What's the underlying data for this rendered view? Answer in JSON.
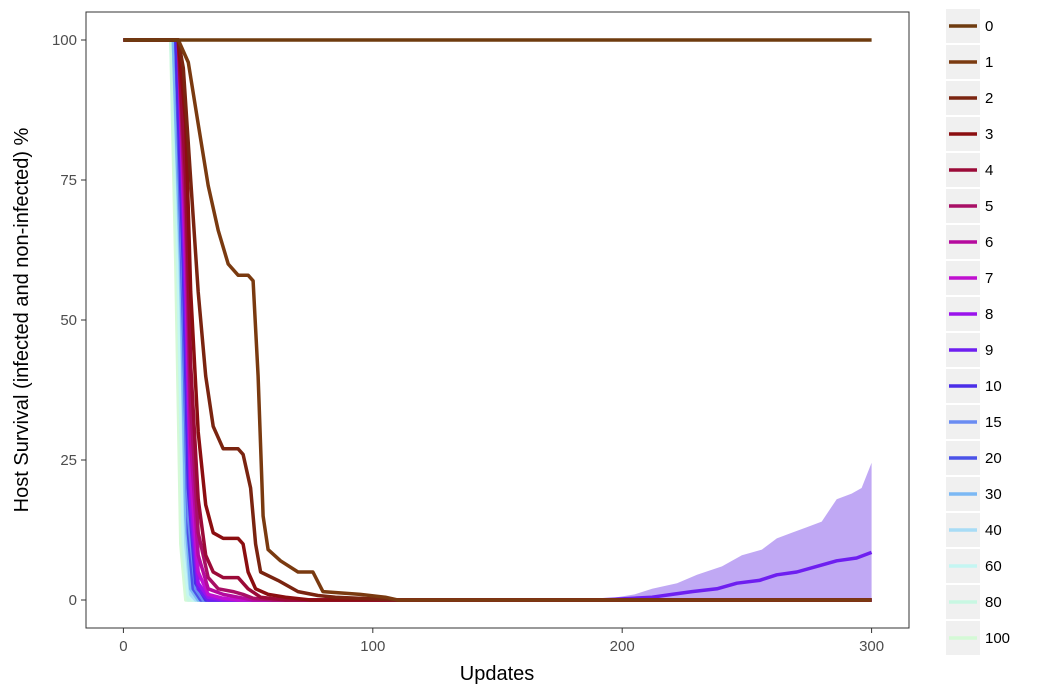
{
  "chart_data": {
    "type": "line",
    "title": "",
    "xlabel": "Updates",
    "ylabel": "Host Survival (infected and non-infected) %",
    "xlim": [
      -15,
      315
    ],
    "ylim": [
      -5,
      105
    ],
    "x_ticks": [
      0,
      100,
      200,
      300
    ],
    "y_ticks": [
      0,
      25,
      50,
      75,
      100
    ],
    "grid": false,
    "legend_position": "right",
    "series": [
      {
        "name": "0",
        "color": "#6e3b0f",
        "points": [
          [
            0,
            100
          ],
          [
            300,
            100
          ]
        ]
      },
      {
        "name": "1",
        "color": "#7a3a10",
        "points": [
          [
            0,
            100
          ],
          [
            22,
            100
          ],
          [
            26,
            96
          ],
          [
            30,
            85
          ],
          [
            34,
            74
          ],
          [
            38,
            66
          ],
          [
            42,
            60
          ],
          [
            46,
            58
          ],
          [
            50,
            58
          ],
          [
            52,
            57
          ],
          [
            54,
            40
          ],
          [
            56,
            15
          ],
          [
            58,
            9
          ],
          [
            63,
            7
          ],
          [
            70,
            5
          ],
          [
            76,
            5
          ],
          [
            80,
            1.5
          ],
          [
            95,
            1
          ],
          [
            105,
            0.5
          ],
          [
            110,
            0
          ],
          [
            300,
            0
          ]
        ]
      },
      {
        "name": "2",
        "color": "#7a2410",
        "points": [
          [
            0,
            100
          ],
          [
            22,
            100
          ],
          [
            24,
            95
          ],
          [
            27,
            75
          ],
          [
            30,
            55
          ],
          [
            33,
            40
          ],
          [
            36,
            31
          ],
          [
            40,
            27
          ],
          [
            46,
            27
          ],
          [
            48,
            26
          ],
          [
            51,
            20
          ],
          [
            53,
            10
          ],
          [
            55,
            5
          ],
          [
            62,
            3.5
          ],
          [
            70,
            1.5
          ],
          [
            78,
            0.8
          ],
          [
            85,
            0.5
          ],
          [
            100,
            0.2
          ],
          [
            110,
            0
          ],
          [
            300,
            0
          ]
        ]
      },
      {
        "name": "3",
        "color": "#8b0e10",
        "points": [
          [
            0,
            100
          ],
          [
            22,
            100
          ],
          [
            25,
            85
          ],
          [
            27,
            55
          ],
          [
            30,
            30
          ],
          [
            33,
            17
          ],
          [
            36,
            12
          ],
          [
            40,
            11
          ],
          [
            46,
            11
          ],
          [
            48,
            10
          ],
          [
            50,
            5
          ],
          [
            53,
            2
          ],
          [
            58,
            1
          ],
          [
            65,
            0.5
          ],
          [
            75,
            0
          ],
          [
            300,
            0
          ]
        ]
      },
      {
        "name": "4",
        "color": "#9b0a38",
        "points": [
          [
            0,
            100
          ],
          [
            22,
            100
          ],
          [
            25,
            75
          ],
          [
            27,
            42
          ],
          [
            30,
            18
          ],
          [
            33,
            8
          ],
          [
            36,
            5
          ],
          [
            40,
            4
          ],
          [
            46,
            4
          ],
          [
            48,
            3
          ],
          [
            50,
            2
          ],
          [
            55,
            0.5
          ],
          [
            65,
            0
          ],
          [
            300,
            0
          ]
        ]
      },
      {
        "name": "5",
        "color": "#a80f66",
        "points": [
          [
            0,
            100
          ],
          [
            22,
            100
          ],
          [
            25,
            70
          ],
          [
            27,
            35
          ],
          [
            30,
            12
          ],
          [
            34,
            4
          ],
          [
            38,
            2
          ],
          [
            44,
            1.5
          ],
          [
            48,
            1
          ],
          [
            52,
            0.3
          ],
          [
            60,
            0
          ],
          [
            300,
            0
          ]
        ]
      },
      {
        "name": "6",
        "color": "#b50a9e",
        "points": [
          [
            0,
            100
          ],
          [
            22,
            100
          ],
          [
            25,
            65
          ],
          [
            27,
            28
          ],
          [
            30,
            8
          ],
          [
            34,
            2
          ],
          [
            40,
            1
          ],
          [
            46,
            0.5
          ],
          [
            52,
            0
          ],
          [
            300,
            0
          ]
        ]
      },
      {
        "name": "7",
        "color": "#c010d0",
        "points": [
          [
            0,
            100
          ],
          [
            22,
            100
          ],
          [
            25,
            60
          ],
          [
            27,
            22
          ],
          [
            30,
            5
          ],
          [
            34,
            1
          ],
          [
            40,
            0.3
          ],
          [
            46,
            0
          ],
          [
            300,
            0
          ]
        ]
      },
      {
        "name": "8",
        "color": "#9a12ec",
        "points": [
          [
            0,
            100
          ],
          [
            22,
            100
          ],
          [
            25,
            55
          ],
          [
            27,
            18
          ],
          [
            30,
            3
          ],
          [
            34,
            0.5
          ],
          [
            40,
            0
          ],
          [
            300,
            0
          ]
        ]
      },
      {
        "name": "9",
        "color": "#6e1ff0",
        "points": [
          [
            0,
            100
          ],
          [
            22,
            100
          ],
          [
            25,
            50
          ],
          [
            27,
            15
          ],
          [
            30,
            2
          ],
          [
            34,
            0
          ],
          [
            190,
            0
          ],
          [
            200,
            0.2
          ],
          [
            212,
            0.5
          ],
          [
            220,
            1
          ],
          [
            228,
            1.5
          ],
          [
            238,
            2
          ],
          [
            246,
            3
          ],
          [
            255,
            3.5
          ],
          [
            262,
            4.5
          ],
          [
            270,
            5
          ],
          [
            278,
            6
          ],
          [
            286,
            7
          ],
          [
            294,
            7.5
          ],
          [
            300,
            8.5
          ]
        ],
        "ribbon_upper": [
          [
            185,
            0
          ],
          [
            195,
            0.3
          ],
          [
            205,
            1
          ],
          [
            212,
            2
          ],
          [
            222,
            3
          ],
          [
            230,
            4.5
          ],
          [
            240,
            6
          ],
          [
            248,
            8
          ],
          [
            256,
            9
          ],
          [
            262,
            11
          ],
          [
            268,
            12
          ],
          [
            274,
            13
          ],
          [
            280,
            14
          ],
          [
            286,
            18
          ],
          [
            292,
            19
          ],
          [
            296,
            20
          ],
          [
            300,
            24.5
          ]
        ]
      },
      {
        "name": "10",
        "color": "#4a2ee8",
        "points": [
          [
            0,
            100
          ],
          [
            21,
            100
          ],
          [
            24,
            60
          ],
          [
            26,
            20
          ],
          [
            29,
            3
          ],
          [
            33,
            0
          ],
          [
            300,
            0
          ]
        ]
      },
      {
        "name": "15",
        "color": "#6a8cf2",
        "points": [
          [
            0,
            100
          ],
          [
            21,
            100
          ],
          [
            24,
            55
          ],
          [
            26,
            15
          ],
          [
            29,
            2
          ],
          [
            32,
            0
          ],
          [
            300,
            0
          ]
        ]
      },
      {
        "name": "20",
        "color": "#4a52e8",
        "points": [
          [
            0,
            100
          ],
          [
            21,
            100
          ],
          [
            24,
            50
          ],
          [
            26,
            12
          ],
          [
            28,
            2
          ],
          [
            31,
            0
          ],
          [
            300,
            0
          ]
        ]
      },
      {
        "name": "30",
        "color": "#7bb8f4",
        "points": [
          [
            0,
            100
          ],
          [
            20,
            100
          ],
          [
            23,
            60
          ],
          [
            25,
            15
          ],
          [
            27,
            2
          ],
          [
            30,
            0
          ],
          [
            300,
            0
          ]
        ]
      },
      {
        "name": "40",
        "color": "#a8dcf6",
        "points": [
          [
            0,
            100
          ],
          [
            20,
            100
          ],
          [
            23,
            55
          ],
          [
            25,
            10
          ],
          [
            27,
            1
          ],
          [
            29,
            0
          ],
          [
            300,
            0
          ]
        ]
      },
      {
        "name": "60",
        "color": "#c4f6f2",
        "points": [
          [
            0,
            100
          ],
          [
            20,
            100
          ],
          [
            22,
            60
          ],
          [
            24,
            12
          ],
          [
            26,
            1
          ],
          [
            28,
            0
          ],
          [
            300,
            0
          ]
        ]
      },
      {
        "name": "80",
        "color": "#c8f7e2",
        "points": [
          [
            0,
            100
          ],
          [
            19,
            100
          ],
          [
            22,
            55
          ],
          [
            24,
            8
          ],
          [
            26,
            0
          ],
          [
            300,
            0
          ]
        ]
      },
      {
        "name": "100",
        "color": "#d4f9d6",
        "points": [
          [
            0,
            100
          ],
          [
            19,
            100
          ],
          [
            21,
            60
          ],
          [
            23,
            10
          ],
          [
            25,
            0
          ],
          [
            300,
            0
          ]
        ]
      }
    ]
  }
}
